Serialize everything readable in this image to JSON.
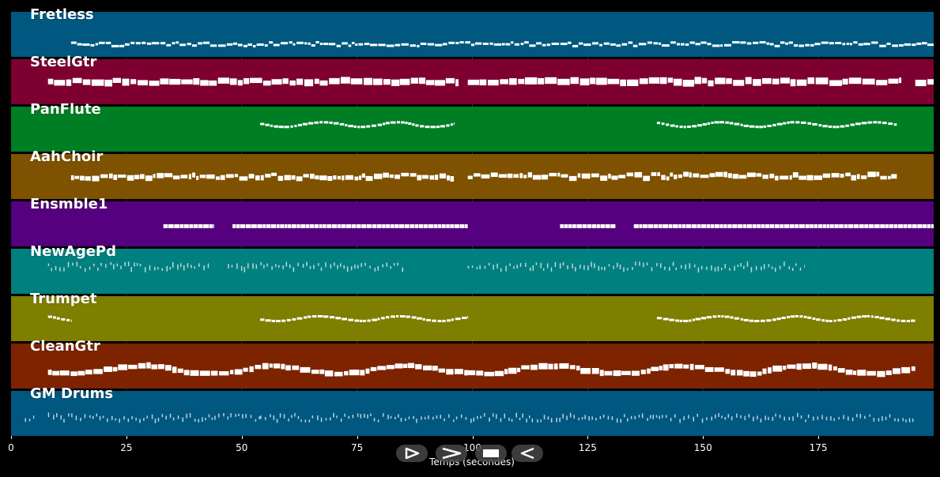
{
  "timeline": {
    "x_axis_label": "Temps (secondes)",
    "x_range": [
      0,
      200
    ],
    "ticks": [
      0,
      25,
      50,
      75,
      100,
      125,
      150,
      175
    ],
    "tick_labels": [
      "0",
      "25",
      "50",
      "75",
      "100",
      "125",
      "150",
      "175"
    ]
  },
  "tracks": [
    {
      "name": "Fretless",
      "color": "#00577f",
      "style": "dense-small",
      "segments": [
        [
          13,
          200
        ]
      ],
      "base": 0.72
    },
    {
      "name": "SteelGtr",
      "color": "#7e0030",
      "style": "thick",
      "segments": [
        [
          8,
          97
        ],
        [
          99,
          193
        ],
        [
          196,
          200
        ]
      ],
      "base": 0.5
    },
    {
      "name": "PanFlute",
      "color": "#007e24",
      "style": "wave",
      "segments": [
        [
          54,
          96
        ],
        [
          140,
          192
        ]
      ],
      "base": 0.4
    },
    {
      "name": "AahChoir",
      "color": "#7e5200",
      "style": "dense-mixed",
      "segments": [
        [
          13,
          96
        ],
        [
          99,
          192
        ]
      ],
      "base": 0.5
    },
    {
      "name": "Ensmble1",
      "color": "#55007e",
      "style": "sustain",
      "segments": [
        [
          33,
          44
        ],
        [
          48,
          99
        ],
        [
          119,
          131
        ],
        [
          135,
          200
        ]
      ],
      "base": 0.55
    },
    {
      "name": "NewAgePd",
      "color": "#00807e",
      "style": "sparse",
      "segments": [
        [
          8,
          43
        ],
        [
          47,
          85
        ],
        [
          99,
          172
        ]
      ],
      "base": 0.4
    },
    {
      "name": "Trumpet",
      "color": "#7e7e00",
      "style": "wave",
      "segments": [
        [
          8,
          13
        ],
        [
          54,
          99
        ],
        [
          140,
          196
        ]
      ],
      "base": 0.5
    },
    {
      "name": "CleanGtr",
      "color": "#7e2300",
      "style": "thick-rise",
      "segments": [
        [
          8,
          99
        ],
        [
          99,
          196
        ]
      ],
      "base": 0.6
    },
    {
      "name": "GM Drums",
      "color": "#00577f",
      "style": "drums",
      "segments": [
        [
          3,
          5
        ],
        [
          8,
          54
        ],
        [
          54,
          196
        ]
      ],
      "base": 0.6
    }
  ],
  "controls": {
    "play_icon": "play-outline-icon",
    "forward_icon": "chevron-right-icon",
    "stop_icon": "stop-icon",
    "rewind_icon": "rewind-icon"
  }
}
